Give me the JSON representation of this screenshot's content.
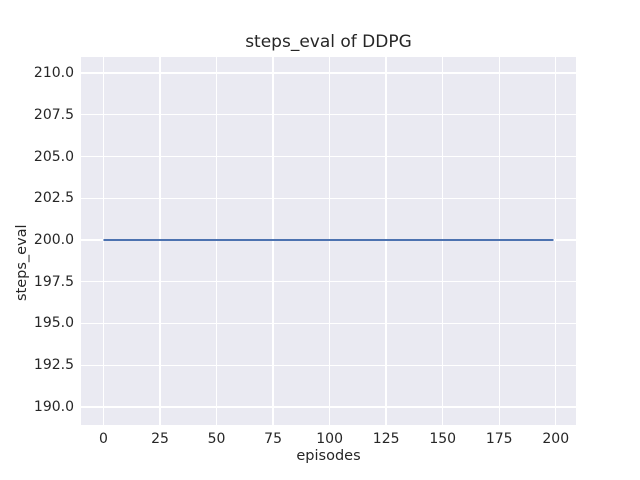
{
  "chart_data": {
    "type": "line",
    "title": "steps_eval of DDPG",
    "xlabel": "episodes",
    "ylabel": "steps_eval",
    "xlim": [
      -9.95,
      208.95
    ],
    "ylim": [
      188.92,
      210.96
    ],
    "x_ticks": [
      0,
      25,
      50,
      75,
      100,
      125,
      150,
      175,
      200
    ],
    "x_tick_labels": [
      "0",
      "25",
      "50",
      "75",
      "100",
      "125",
      "150",
      "175",
      "200"
    ],
    "y_ticks": [
      190.0,
      192.5,
      195.0,
      197.5,
      200.0,
      202.5,
      205.0,
      207.5,
      210.0
    ],
    "y_tick_labels": [
      "190.0",
      "192.5",
      "195.0",
      "197.5",
      "200.0",
      "202.5",
      "205.0",
      "207.5",
      "210.0"
    ],
    "grid": true,
    "legend_position": "none",
    "plot_background": "#EAEAF2",
    "grid_color": "#FFFFFF",
    "text_color": "#262626",
    "series": [
      {
        "name": "steps_eval of DDPG",
        "color": "#4C72B0",
        "line_width": 2,
        "x": [
          0,
          199
        ],
        "y": [
          200.0,
          200.0
        ],
        "note": "constant value 200.0 across all 200 episodes"
      }
    ]
  }
}
